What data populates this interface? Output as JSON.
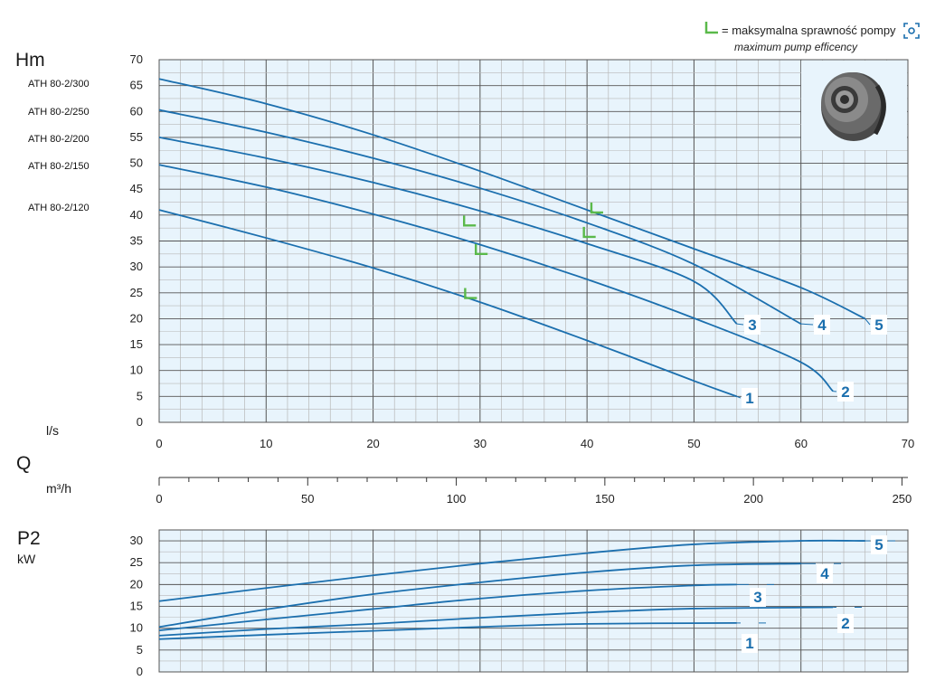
{
  "legend": {
    "symbol_color": "#5ab94a",
    "main_label": "= maksymalna sprawność pompy",
    "sub_label": "maximum pump efficency"
  },
  "colors": {
    "curve": "#1b6fae",
    "plot_bg": "#e8f4fc",
    "grid_major": "#555555",
    "grid_minor": "#b8b8b8",
    "label": "#1b6fae",
    "efficiency_mark": "#5ab94a"
  },
  "side_labels": {
    "hm": "Hm",
    "ls": "l/s",
    "q": "Q",
    "m3h": "m³/h",
    "p2": "P2",
    "kw": "kW"
  },
  "models": [
    "ATH 80-2/300",
    "ATH 80-2/250",
    "ATH 80-2/200",
    "ATH 80-2/150",
    "ATH 80-2/120"
  ],
  "image_icon": "pump-impeller-icon",
  "scan_icon": "scan-icon",
  "chart_data": [
    {
      "type": "line",
      "id": "head-curves",
      "xlabel": "l/s",
      "ylabel": "Hm",
      "xlim": [
        0,
        70
      ],
      "ylim": [
        0,
        70
      ],
      "x_ticks": [
        0,
        10,
        20,
        30,
        40,
        50,
        60,
        70
      ],
      "y_ticks": [
        0,
        5,
        10,
        15,
        20,
        25,
        30,
        35,
        40,
        45,
        50,
        55,
        60,
        65,
        70
      ],
      "grid": true,
      "series": [
        {
          "name": "1",
          "x": [
            0,
            10,
            20,
            30,
            40,
            50,
            54
          ],
          "y": [
            41,
            35.6,
            29.8,
            23.2,
            15.8,
            8,
            5
          ]
        },
        {
          "name": "2",
          "x": [
            0,
            10,
            20,
            30,
            40,
            50,
            60,
            63
          ],
          "y": [
            49.7,
            45.4,
            40.2,
            34.3,
            27.6,
            20.1,
            11.6,
            6
          ]
        },
        {
          "name": "3",
          "x": [
            0,
            10,
            20,
            30,
            40,
            50,
            54
          ],
          "y": [
            55,
            51,
            46.3,
            40.8,
            34.5,
            27.2,
            19
          ]
        },
        {
          "name": "4",
          "x": [
            0,
            10,
            20,
            30,
            40,
            50,
            60
          ],
          "y": [
            60.3,
            56,
            51,
            45.2,
            38.5,
            30.5,
            19
          ]
        },
        {
          "name": "5",
          "x": [
            0,
            10,
            20,
            30,
            40,
            50,
            60,
            66
          ],
          "y": [
            66.3,
            61.5,
            55.5,
            48.5,
            41,
            33.5,
            26,
            20
          ]
        }
      ],
      "efficiency_points": [
        {
          "x": 29.2,
          "y": 24
        },
        {
          "x": 29.1,
          "y": 38
        },
        {
          "x": 30.2,
          "y": 32.5
        },
        {
          "x": 40.3,
          "y": 35.8
        },
        {
          "x": 41,
          "y": 40.5
        }
      ]
    },
    {
      "type": "axis",
      "id": "flow-m3h-axis",
      "xlabel": "m³/h",
      "xlim": [
        0,
        252
      ],
      "x_ticks": [
        0,
        50,
        100,
        150,
        200,
        250
      ]
    },
    {
      "type": "line",
      "id": "power-curves",
      "xlabel": "l/s",
      "ylabel": "P2 kW",
      "xlim": [
        0,
        70
      ],
      "ylim": [
        0,
        32.5
      ],
      "y_ticks": [
        0,
        5,
        10,
        15,
        20,
        25,
        30
      ],
      "grid": true,
      "series": [
        {
          "name": "1",
          "x": [
            0,
            10,
            20,
            30,
            40,
            54
          ],
          "y": [
            7.5,
            8.5,
            9.4,
            10.3,
            11,
            11.2
          ]
        },
        {
          "name": "2",
          "x": [
            0,
            10,
            20,
            30,
            40,
            50,
            63
          ],
          "y": [
            8.3,
            9.8,
            11,
            12.4,
            13.6,
            14.5,
            14.8
          ]
        },
        {
          "name": "3",
          "x": [
            0,
            10,
            20,
            30,
            40,
            50,
            54
          ],
          "y": [
            9.5,
            12,
            14.4,
            16.8,
            18.6,
            19.8,
            20
          ]
        },
        {
          "name": "4",
          "x": [
            0,
            10,
            20,
            30,
            40,
            50,
            60
          ],
          "y": [
            10.3,
            14.3,
            17.8,
            20.5,
            22.8,
            24.4,
            24.8
          ]
        },
        {
          "name": "5",
          "x": [
            0,
            10,
            20,
            30,
            40,
            50,
            60,
            66
          ],
          "y": [
            16.2,
            19.2,
            22.1,
            24.8,
            27.2,
            29.2,
            30,
            30
          ]
        }
      ]
    }
  ]
}
